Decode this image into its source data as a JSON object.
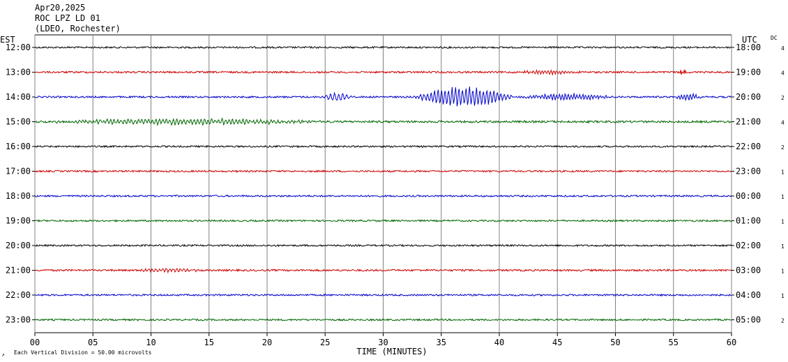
{
  "header": {
    "date": "Apr20,2025",
    "station": "ROC LPZ LD 01",
    "network": "(LDEO, Rochester)"
  },
  "chart_data": {
    "type": "line",
    "title": "Apr20,2025",
    "subtitle": "ROC LPZ LD 01 (LDEO, Rochester)",
    "xlabel": "TIME (MINUTES)",
    "xlim": [
      0,
      60
    ],
    "xticks": [
      "00",
      "05",
      "10",
      "15",
      "20",
      "25",
      "30",
      "35",
      "40",
      "45",
      "50",
      "55",
      "60"
    ],
    "left_axis_label": "EST",
    "right_axis_label": "UTC",
    "dc_label": "DC",
    "vertical_division_note": "Each Vertical Division =   50.00 microvolts",
    "grid": true,
    "colors": [
      "#000000",
      "#cc0000",
      "#0000cc",
      "#006600"
    ],
    "rows": [
      {
        "est": "12:00",
        "utc": "18:00",
        "dc": "4",
        "color": "#000000",
        "noise": 1.2,
        "events": []
      },
      {
        "est": "13:00",
        "utc": "19:00",
        "dc": "4",
        "color": "#cc0000",
        "noise": 1.3,
        "events": [
          {
            "start": 41.5,
            "end": 47.5,
            "amp": 3.0,
            "period": 0.25
          },
          {
            "start": 55.2,
            "end": 56.2,
            "amp": 3.5,
            "period": 0.15
          }
        ]
      },
      {
        "est": "14:00",
        "utc": "20:00",
        "dc": "2",
        "color": "#0000cc",
        "noise": 1.2,
        "events": [
          {
            "start": 24.5,
            "end": 27.5,
            "amp": 6.0,
            "period": 0.35
          },
          {
            "start": 32.5,
            "end": 41.5,
            "amp": 15.0,
            "period": 0.3
          },
          {
            "start": 41.5,
            "end": 50.0,
            "amp": 5.0,
            "period": 0.25
          },
          {
            "start": 55.0,
            "end": 57.5,
            "amp": 5.0,
            "period": 0.25
          }
        ]
      },
      {
        "est": "15:00",
        "utc": "21:00",
        "dc": "4",
        "color": "#006600",
        "noise": 1.5,
        "events": [
          {
            "start": 0.0,
            "end": 26.0,
            "amp": 4.0,
            "period": 0.3
          }
        ]
      },
      {
        "est": "16:00",
        "utc": "22:00",
        "dc": "2",
        "color": "#000000",
        "noise": 1.2,
        "events": []
      },
      {
        "est": "17:00",
        "utc": "23:00",
        "dc": "1",
        "color": "#cc0000",
        "noise": 1.2,
        "events": []
      },
      {
        "est": "18:00",
        "utc": "00:00",
        "dc": "1",
        "color": "#0000cc",
        "noise": 1.2,
        "events": []
      },
      {
        "est": "19:00",
        "utc": "01:00",
        "dc": "1",
        "color": "#006600",
        "noise": 1.2,
        "events": []
      },
      {
        "est": "20:00",
        "utc": "02:00",
        "dc": "1",
        "color": "#000000",
        "noise": 1.2,
        "events": []
      },
      {
        "est": "21:00",
        "utc": "03:00",
        "dc": "1",
        "color": "#cc0000",
        "noise": 1.3,
        "events": [
          {
            "start": 8.0,
            "end": 15.0,
            "amp": 2.5,
            "period": 0.3
          }
        ]
      },
      {
        "est": "22:00",
        "utc": "04:00",
        "dc": "1",
        "color": "#0000cc",
        "noise": 1.2,
        "events": []
      },
      {
        "est": "23:00",
        "utc": "05:00",
        "dc": "2",
        "color": "#006600",
        "noise": 1.2,
        "events": []
      }
    ]
  }
}
